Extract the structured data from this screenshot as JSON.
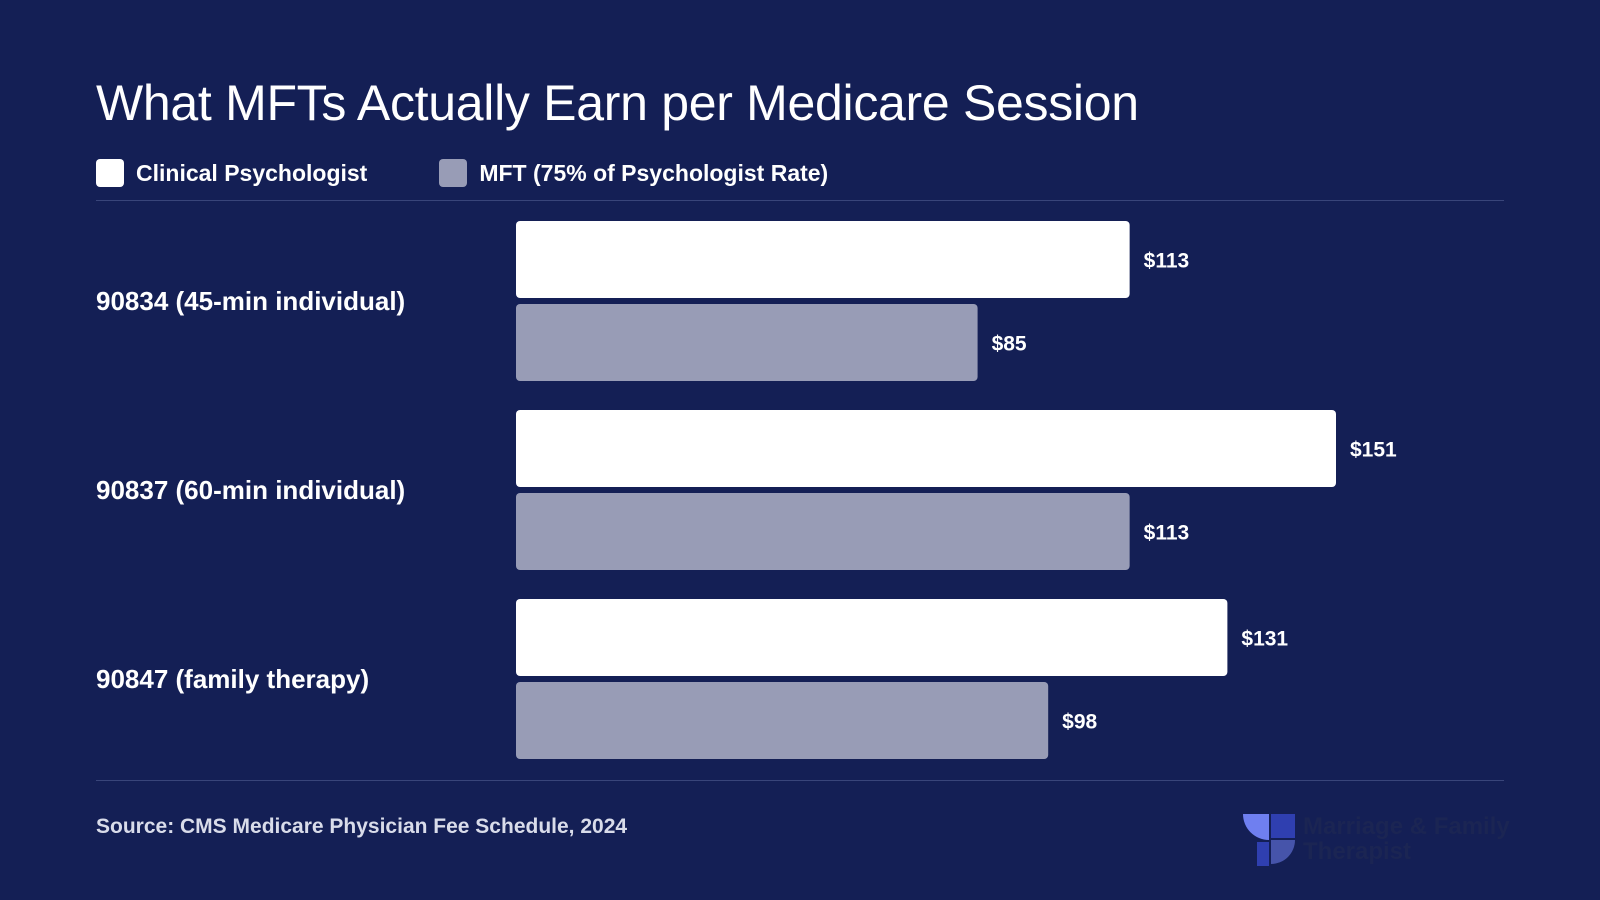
{
  "title": "What MFTs Actually Earn per Medicare Session",
  "legend": {
    "psych_label": "Clinical Psychologist",
    "mft_label": "MFT (75% of Psychologist Rate)"
  },
  "source": "Source: CMS Medicare Physician Fee Schedule, 2024",
  "logo": {
    "text": "Marriage & Family Therapist"
  },
  "colors": {
    "background": "#141f55",
    "psychologist": "#ffffff",
    "mft": "#989cb6",
    "logo_light": "#6f7ff0",
    "logo_dark": "#2f3fb0"
  },
  "chart_data": {
    "type": "bar",
    "orientation": "horizontal",
    "categories": [
      "90834 (45-min individual)",
      "90837 (60-min individual)",
      "90847 (family therapy)"
    ],
    "series": [
      {
        "name": "Clinical Psychologist",
        "values": [
          113,
          151,
          131
        ],
        "labels": [
          "$113",
          "$151",
          "$131"
        ]
      },
      {
        "name": "MFT (75% of Psychologist Rate)",
        "values": [
          85,
          113,
          98
        ],
        "labels": [
          "$85",
          "$113",
          "$98"
        ]
      }
    ],
    "title": "What MFTs Actually Earn per Medicare Session",
    "xlim": [
      0,
      151
    ],
    "grid": false,
    "legend_position": "top-left"
  }
}
